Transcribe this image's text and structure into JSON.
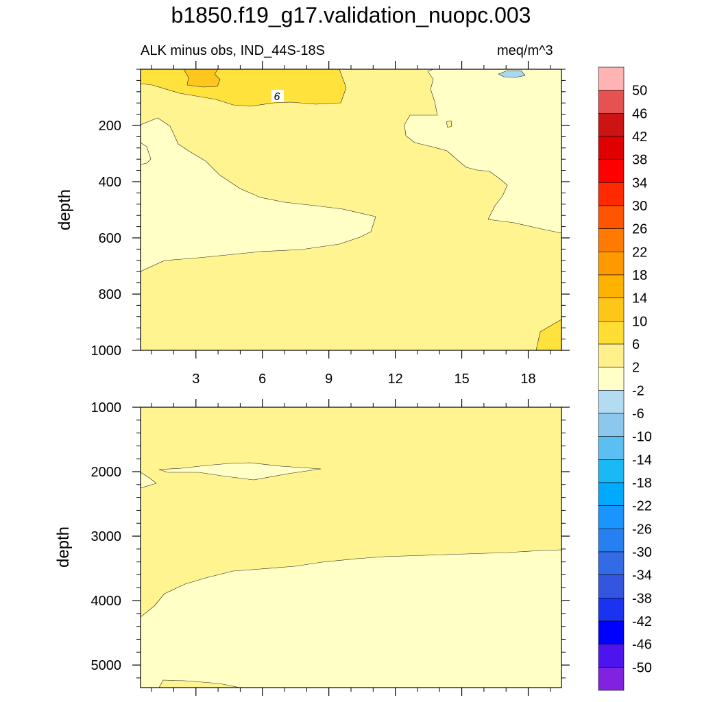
{
  "title": "b1850.f19_g17.validation_nuopc.003",
  "subtitle_left": "ALK minus obs, IND_44S-18S",
  "subtitle_right": "meq/m^3",
  "chart_data": [
    {
      "type": "contour",
      "panel": "upper",
      "ylabel": "depth",
      "xlabel": "",
      "xlim": [
        0.5,
        19.5
      ],
      "ylim": [
        1000,
        0
      ],
      "xticks": [
        3,
        6,
        9,
        12,
        15,
        18
      ],
      "yticks": [
        200,
        400,
        600,
        800,
        1000
      ],
      "contour_label": "6",
      "background_band": "2 to 6",
      "regions": [
        {
          "band": "6 to 10",
          "location": "surface, x 0.5-10.5, depth 0-130"
        },
        {
          "band": "10 to 14",
          "location": "surface, x 2.5-4.4, depth 0-60"
        },
        {
          "band": "-2 to 2",
          "location": "x 0.5-12.5, depth 200-720"
        },
        {
          "band": "-2 to 2",
          "location": "x 14.5-19.5, depth 0-570"
        },
        {
          "band": "-6 to -2",
          "location": "surface, x 16.5-18.2, depth 0-25"
        },
        {
          "band": "6 to 10",
          "location": "bottom right, x 18.5-19.5, depth 890-1000"
        }
      ]
    },
    {
      "type": "contour",
      "panel": "lower",
      "ylabel": "depth",
      "xlabel": "",
      "xlim": [
        0.5,
        19.5
      ],
      "ylim": [
        5350,
        1000
      ],
      "xticks": [
        3,
        6,
        9,
        12,
        15,
        18
      ],
      "yticks": [
        1000,
        2000,
        3000,
        4000,
        5000
      ],
      "background_band": "2 to 6",
      "regions": [
        {
          "band": "-2 to 2",
          "location": "x 1.5-8.5, depth 1880-2100"
        },
        {
          "band": "-2 to 2",
          "location": "x 0.5-19.5, depth 3230-5350"
        },
        {
          "band": "2 to 6",
          "location": "bottom, x 1.5-5.0, depth 5250-5350"
        }
      ]
    }
  ],
  "colorbar": {
    "labels": [
      "50",
      "46",
      "42",
      "38",
      "34",
      "30",
      "26",
      "22",
      "18",
      "14",
      "10",
      "6",
      "2",
      "-2",
      "-6",
      "-10",
      "-14",
      "-18",
      "-22",
      "-26",
      "-30",
      "-34",
      "-38",
      "-42",
      "-46",
      "-50"
    ],
    "colors": [
      "#ffb3b3",
      "#e65252",
      "#cc1414",
      "#e00000",
      "#ff0000",
      "#ff2a00",
      "#ff5500",
      "#ff7a00",
      "#ff9900",
      "#ffb300",
      "#ffc61a",
      "#ffdd33",
      "#fff08c",
      "#ffffc7",
      "#b3dbf2",
      "#8cc7ed",
      "#5cbff2",
      "#1ab8f5",
      "#00aaff",
      "#1a94ff",
      "#2680f2",
      "#336ae6",
      "#3355e0",
      "#1a33f0",
      "#0000ff",
      "#4d14f0",
      "#8022e0"
    ]
  },
  "palette": {
    "band_2_6": "#fff48f",
    "band_m2_2": "#ffffc6",
    "band_6_10": "#ffe23c",
    "band_10_14": "#ffc61e",
    "band_m6_m2": "#a9d8f2"
  }
}
